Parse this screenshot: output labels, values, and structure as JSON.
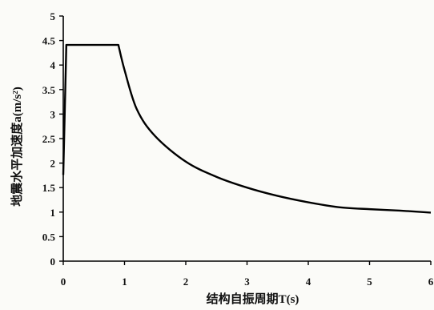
{
  "chart_data": {
    "type": "line",
    "title": "",
    "xlabel": "结构自振周期T(s)",
    "ylabel": "地震水平加速度a(m/s²)",
    "xlim": [
      0,
      6
    ],
    "ylim": [
      0,
      5
    ],
    "xticks": [
      0,
      1,
      2,
      3,
      4,
      5,
      6
    ],
    "yticks": [
      0,
      0.5,
      1,
      1.5,
      2,
      2.5,
      3,
      3.5,
      4,
      4.5,
      5
    ],
    "xtick_labels": [
      "0",
      "1",
      "2",
      "3",
      "4",
      "5",
      "6"
    ],
    "ytick_labels": [
      "0",
      "0.5",
      "1",
      "1.5",
      "2",
      "2.5",
      "3",
      "3.5",
      "4",
      "4.5",
      "5"
    ],
    "grid": false,
    "legend": "none",
    "series": [
      {
        "x": [
          0,
          0.05,
          0.1,
          0.9,
          1.0,
          1.2,
          1.5,
          2.0,
          2.5,
          3.0,
          3.5,
          4.0,
          4.5,
          5.0,
          5.5,
          6.0
        ],
        "values": [
          1.76,
          4.41,
          4.41,
          4.41,
          3.9,
          3.1,
          2.55,
          2.03,
          1.72,
          1.5,
          1.33,
          1.2,
          1.1,
          1.06,
          1.03,
          0.99
        ]
      }
    ],
    "colors": {
      "line": "#000000",
      "axis": "#000000"
    }
  }
}
